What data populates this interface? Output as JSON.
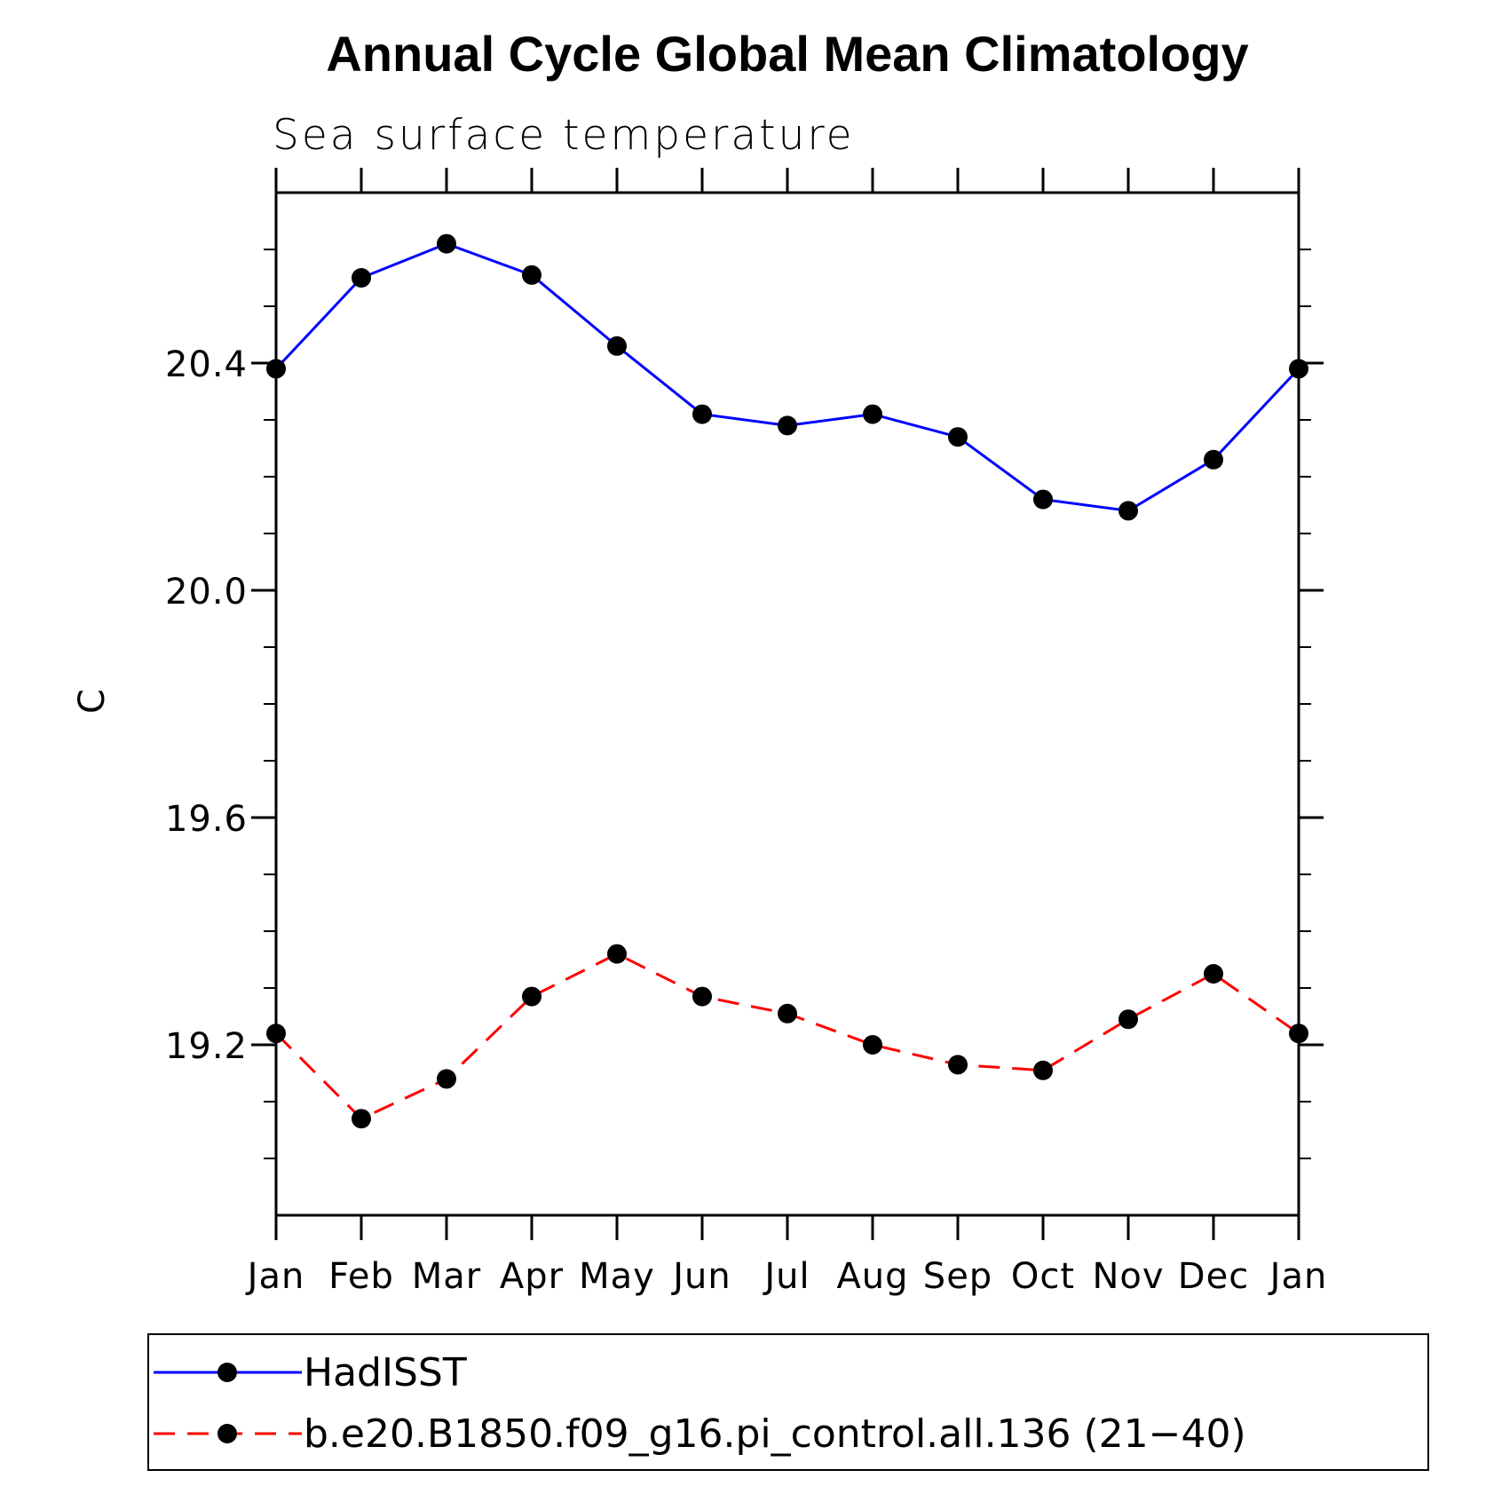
{
  "chart_data": {
    "type": "line",
    "title": "Annual Cycle Global Mean Climatology",
    "subtitle": "Sea surface temperature",
    "xlabel": "",
    "ylabel": "C",
    "categories": [
      "Jan",
      "Feb",
      "Mar",
      "Apr",
      "May",
      "Jun",
      "Jul",
      "Aug",
      "Sep",
      "Oct",
      "Nov",
      "Dec",
      "Jan"
    ],
    "ylim": [
      18.9,
      20.7
    ],
    "yticks": [
      19.2,
      19.6,
      20.0,
      20.4
    ],
    "ytick_labels": [
      "19.2",
      "19.6",
      "20.0",
      "20.4"
    ],
    "grid": false,
    "legend_position": "bottom",
    "series": [
      {
        "name": "HadISST",
        "color": "#0000ff",
        "dash": "solid",
        "marker": "filled-circle",
        "values": [
          20.39,
          20.55,
          20.61,
          20.555,
          20.43,
          20.31,
          20.29,
          20.31,
          20.27,
          20.16,
          20.14,
          20.23,
          20.39
        ]
      },
      {
        "name": "b.e20.B1850.f09_g16.pi_control.all.136 (21−40)",
        "color": "#ff0000",
        "dash": "dashed",
        "marker": "filled-circle",
        "values": [
          19.22,
          19.07,
          19.14,
          19.285,
          19.36,
          19.285,
          19.255,
          19.2,
          19.165,
          19.155,
          19.245,
          19.325,
          19.22
        ]
      }
    ]
  }
}
